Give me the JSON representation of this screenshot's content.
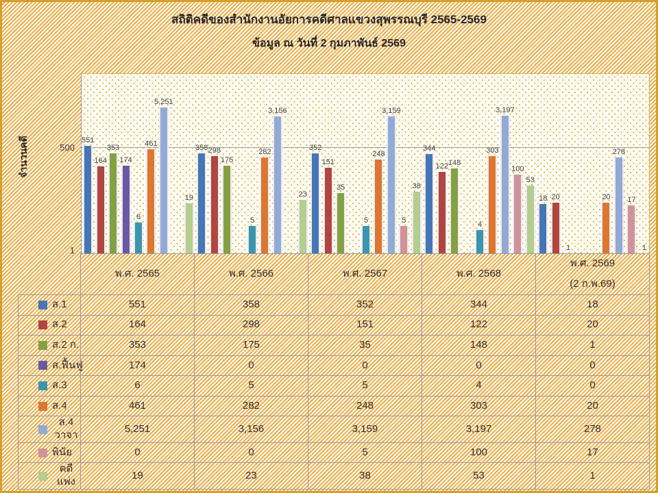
{
  "header": {
    "title": "สถิติคดีของสำนักงานอัยการคดีศาลแขวงสุพรรณบุรี 2565-2569",
    "subtitle": "ข้อมูล ณ วันที่ 2 กุมภาพันธ์ 2569"
  },
  "chart": {
    "y_axis_title": "จำนวนคดี",
    "y_tick_top": "500",
    "y_tick_bottom": "1"
  },
  "chart_data": {
    "type": "bar",
    "title": "สถิติคดีของสำนักงานอัยการคดีศาลแขวงสุพรรณบุรี 2565-2569",
    "subtitle": "ข้อมูล ณ วันที่ 2 กุมภาพันธ์ 2569",
    "ylabel": "จำนวนคดี",
    "yscale": "log",
    "yticks": [
      1,
      500
    ],
    "grid": "single-line-at-500",
    "legend_position": "table-left",
    "categories": [
      {
        "label": "พ.ศ. 2565",
        "note": ""
      },
      {
        "label": "พ.ศ. 2566",
        "note": ""
      },
      {
        "label": "พ.ศ. 2567",
        "note": ""
      },
      {
        "label": "พ.ศ. 2568",
        "note": ""
      },
      {
        "label": "พ.ศ. 2569",
        "note": "(2 ก.พ.69)"
      }
    ],
    "series": [
      {
        "name": "ส.1",
        "color": "#4676B4",
        "values": [
          551,
          358,
          352,
          344,
          18
        ]
      },
      {
        "name": "ส.2",
        "color": "#B1453F",
        "values": [
          164,
          298,
          151,
          122,
          20
        ]
      },
      {
        "name": "ส.2 ก.",
        "color": "#84A142",
        "values": [
          353,
          175,
          35,
          148,
          1
        ]
      },
      {
        "name": "ส.ฟื้นฟู",
        "color": "#6C57A3",
        "values": [
          174,
          0,
          0,
          0,
          0
        ]
      },
      {
        "name": "ส.3",
        "color": "#3B96AD",
        "values": [
          6,
          5,
          5,
          4,
          0
        ]
      },
      {
        "name": "ส.4",
        "color": "#DD7730",
        "values": [
          461,
          282,
          248,
          303,
          20
        ]
      },
      {
        "name": "ส.4 วาจา",
        "color": "#92ABD5",
        "values": [
          5251,
          3156,
          3159,
          3197,
          278
        ]
      },
      {
        "name": "พินัย",
        "color": "#D0939A",
        "values": [
          0,
          0,
          5,
          100,
          17
        ]
      },
      {
        "name": "คดีแพ่ง",
        "color": "#B3CE8E",
        "values": [
          19,
          23,
          38,
          53,
          1
        ]
      }
    ]
  }
}
